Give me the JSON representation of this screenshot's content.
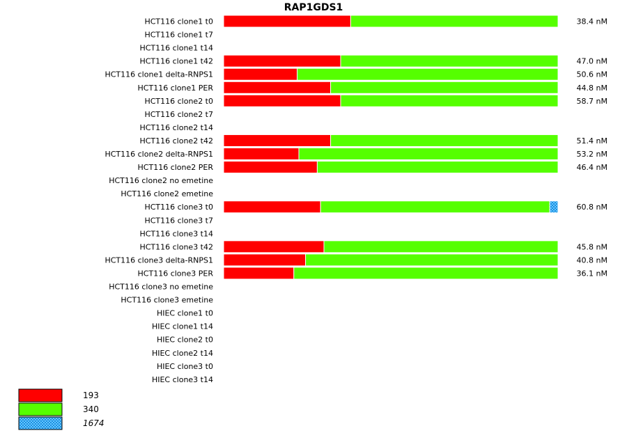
{
  "chart_data": {
    "type": "bar",
    "orientation": "horizontal",
    "stacked": true,
    "normalized": true,
    "title": "RAP1GDS1",
    "unit_label_suffix": " nM",
    "categories": [
      "HCT116 clone1 t0",
      "HCT116 clone1 t7",
      "HCT116 clone1 t14",
      "HCT116 clone1 t42",
      "HCT116 clone1 delta-RNPS1",
      "HCT116 clone1 PER",
      "HCT116 clone2 t0",
      "HCT116 clone2 t7",
      "HCT116 clone2 t14",
      "HCT116 clone2 t42",
      "HCT116 clone2 delta-RNPS1",
      "HCT116 clone2 PER",
      "HCT116 clone2 no emetine",
      "HCT116 clone2 emetine",
      "HCT116 clone3 t0",
      "HCT116 clone3 t7",
      "HCT116 clone3 t14",
      "HCT116 clone3 t42",
      "HCT116 clone3 delta-RNPS1",
      "HCT116 clone3 PER",
      "HCT116 clone3 no emetine",
      "HCT116 clone3 emetine",
      "HIEC clone1 t0",
      "HIEC clone1 t14",
      "HIEC clone2 t0",
      "HIEC clone2 t14",
      "HIEC clone3 t0",
      "HIEC clone3 t14"
    ],
    "totals": [
      "38.4 nM",
      null,
      null,
      "47.0 nM",
      "50.6 nM",
      "44.8 nM",
      "58.7 nM",
      null,
      null,
      "51.4 nM",
      "53.2 nM",
      "46.4 nM",
      null,
      null,
      "60.8 nM",
      null,
      null,
      "45.8 nM",
      "40.8 nM",
      "36.1 nM",
      null,
      null,
      null,
      null,
      null,
      null,
      null,
      null
    ],
    "series": [
      {
        "name": "193",
        "color": "#ff0000",
        "pattern": "solid",
        "italic": false,
        "values": [
          0.38,
          null,
          null,
          0.35,
          0.22,
          0.32,
          0.35,
          null,
          null,
          0.32,
          0.225,
          0.28,
          null,
          null,
          0.29,
          null,
          null,
          0.3,
          0.245,
          0.21,
          null,
          null,
          null,
          null,
          null,
          null,
          null,
          null
        ]
      },
      {
        "name": "340",
        "color": "#55ff00",
        "pattern": "solid",
        "italic": false,
        "values": [
          0.62,
          null,
          null,
          0.65,
          0.78,
          0.68,
          0.65,
          null,
          null,
          0.68,
          0.775,
          0.72,
          null,
          null,
          0.685,
          null,
          null,
          0.7,
          0.755,
          0.79,
          null,
          null,
          null,
          null,
          null,
          null,
          null,
          null
        ]
      },
      {
        "name": "1674",
        "color": "#33aaff",
        "pattern": "checker",
        "italic": true,
        "values": [
          0,
          null,
          null,
          0,
          0,
          0,
          0,
          null,
          null,
          0,
          0,
          0,
          null,
          null,
          0.025,
          null,
          null,
          0,
          0,
          0,
          null,
          null,
          null,
          null,
          null,
          null,
          null,
          null
        ]
      }
    ],
    "xlim": [
      0,
      1
    ],
    "legend_position": "bottom-left"
  }
}
